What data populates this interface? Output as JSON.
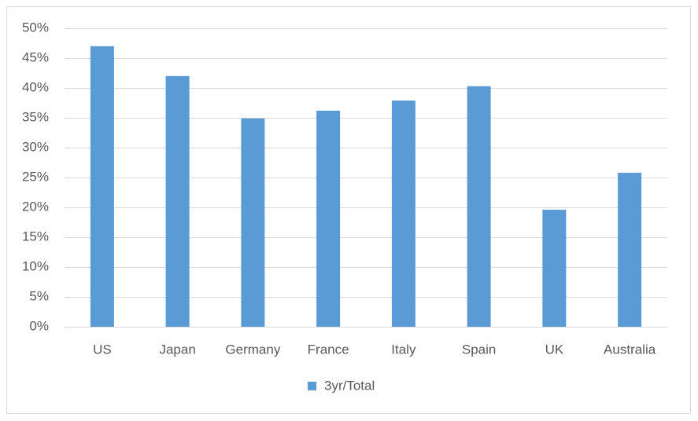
{
  "chart_data": {
    "type": "bar",
    "categories": [
      "US",
      "Japan",
      "Germany",
      "France",
      "Italy",
      "Spain",
      "UK",
      "Australia"
    ],
    "series": [
      {
        "name": "3yr/Total",
        "color": "#5b9bd5",
        "values": [
          47.0,
          42.0,
          34.9,
          36.2,
          37.9,
          40.3,
          19.6,
          25.8
        ]
      }
    ],
    "ylim": [
      0,
      50
    ],
    "yticks": [
      {
        "value": 0,
        "label": "0%"
      },
      {
        "value": 5,
        "label": "5%"
      },
      {
        "value": 10,
        "label": "10%"
      },
      {
        "value": 15,
        "label": "15%"
      },
      {
        "value": 20,
        "label": "20%"
      },
      {
        "value": 25,
        "label": "25%"
      },
      {
        "value": 30,
        "label": "30%"
      },
      {
        "value": 35,
        "label": "35%"
      },
      {
        "value": 40,
        "label": "40%"
      },
      {
        "value": 45,
        "label": "45%"
      },
      {
        "value": 50,
        "label": "50%"
      }
    ],
    "grid": true,
    "legend": "bottom"
  }
}
